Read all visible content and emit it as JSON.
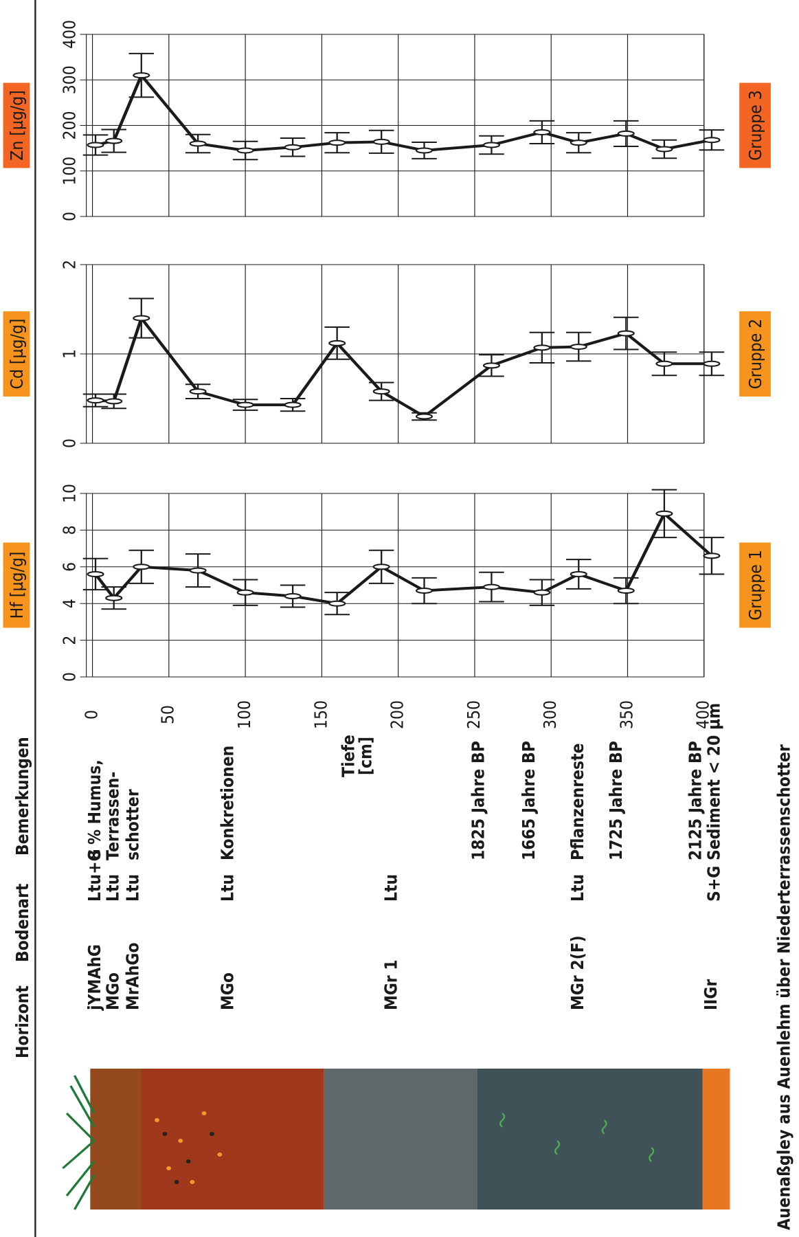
{
  "header": {
    "horizont": "Horizont",
    "bodenart": "Bodenart",
    "bemerkungen": "Bemerkungen"
  },
  "depth_axis": {
    "label": [
      "Tiefe",
      "[cm]"
    ]
  },
  "profile": {
    "horizont": [
      {
        "d": 2,
        "text": "jYMAhG"
      },
      {
        "d": 14,
        "text": "MGo"
      },
      {
        "d": 27,
        "text": "MrAhGo"
      },
      {
        "d": 89,
        "text": "MGo"
      },
      {
        "d": 196,
        "text": "MGr 1"
      },
      {
        "d": 318,
        "text": "MGr  2(F)"
      },
      {
        "d": 405,
        "text": "IIGr"
      }
    ],
    "bodenart": [
      {
        "d": 2,
        "text": "Ltu+G"
      },
      {
        "d": 14,
        "text": "Ltu"
      },
      {
        "d": 27,
        "text": "Ltu"
      },
      {
        "d": 89,
        "text": "Ltu"
      },
      {
        "d": 196,
        "text": "Ltu"
      },
      {
        "d": 318,
        "text": "Ltu"
      },
      {
        "d": 407,
        "text": "S+G"
      }
    ],
    "bemerkungen": [
      {
        "d": 2,
        "text": "8 % Humus,"
      },
      {
        "d": 14,
        "text": "Terrassen-"
      },
      {
        "d": 27,
        "text": "schotter"
      },
      {
        "d": 89,
        "text": "Konkretionen"
      },
      {
        "d": 253,
        "text": "1825 Jahre BP",
        "color": "#c8202f"
      },
      {
        "d": 286,
        "text": "1665 Jahre BP",
        "color": "#c8202f"
      },
      {
        "d": 318,
        "text": "Pflanzenreste"
      },
      {
        "d": 343,
        "text": "1725 Jahre BP",
        "color": "#c8202f"
      },
      {
        "d": 395,
        "text": "2125 Jahre BP",
        "color": "#c8202f"
      },
      {
        "d": 407,
        "text": "Sediment < 20 µm",
        "color": "#c8202f"
      }
    ]
  },
  "caption": "Auenaßgley aus Auenlehm über Niederterrassenschotter",
  "chart_data": [
    {
      "type": "line",
      "title": "Hf [µg/g]",
      "group": "Gruppe 1",
      "x": [
        2,
        14,
        32,
        69,
        100,
        131,
        160,
        189,
        217,
        261,
        294,
        318,
        349,
        374,
        405
      ],
      "xlim": [
        -4,
        400
      ],
      "xticks": [
        0,
        50,
        100,
        150,
        200,
        250,
        300,
        350,
        400
      ],
      "ylim": [
        0,
        10
      ],
      "yticks": [
        0,
        2,
        4,
        6,
        8,
        10
      ],
      "grid": true,
      "series": [
        {
          "color": "#1a1a1a",
          "values": [
            5.6,
            4.3,
            6.0,
            5.8,
            4.6,
            4.4,
            4.0,
            6.0,
            4.7,
            4.9,
            4.6,
            5.6,
            4.7,
            8.9,
            6.6
          ],
          "errors": [
            0.85,
            0.6,
            0.9,
            0.9,
            0.7,
            0.6,
            0.6,
            0.9,
            0.7,
            0.8,
            0.7,
            0.8,
            0.7,
            1.3,
            1.0
          ]
        }
      ]
    },
    {
      "type": "line",
      "title": "Cd [µg/g]",
      "group": "Gruppe 2",
      "x": [
        2,
        14,
        32,
        69,
        100,
        131,
        160,
        189,
        217,
        261,
        294,
        318,
        349,
        374,
        405
      ],
      "xlim": [
        -4,
        400
      ],
      "xticks": [
        0,
        50,
        100,
        150,
        200,
        250,
        300,
        350,
        400
      ],
      "ylim": [
        0,
        2
      ],
      "yticks": [
        0,
        1,
        2
      ],
      "grid": true,
      "series": [
        {
          "color": "#1a1a1a",
          "values": [
            0.48,
            0.47,
            1.4,
            0.58,
            0.43,
            0.43,
            1.12,
            0.58,
            0.3,
            0.87,
            1.07,
            1.08,
            1.23,
            0.89,
            0.89
          ],
          "errors": [
            0.07,
            0.08,
            0.22,
            0.08,
            0.06,
            0.07,
            0.18,
            0.1,
            0.04,
            0.12,
            0.17,
            0.16,
            0.18,
            0.13,
            0.13
          ]
        }
      ]
    },
    {
      "type": "line",
      "title": "Zn [µg/g]",
      "group": "Gruppe 3",
      "x": [
        2,
        14,
        32,
        69,
        100,
        131,
        160,
        189,
        217,
        261,
        294,
        318,
        349,
        374,
        405
      ],
      "xlim": [
        -4,
        400
      ],
      "xticks": [
        0,
        50,
        100,
        150,
        200,
        250,
        300,
        350,
        400
      ],
      "ylim": [
        0,
        400
      ],
      "yticks": [
        0,
        100,
        200,
        300,
        400
      ],
      "grid": true,
      "series": [
        {
          "color": "#1a1a1a",
          "values": [
            157,
            166,
            310,
            160,
            145,
            152,
            162,
            164,
            145,
            157,
            185,
            162,
            182,
            148,
            168
          ],
          "errors": [
            22,
            25,
            48,
            20,
            20,
            20,
            22,
            25,
            18,
            20,
            25,
            22,
            28,
            20,
            22
          ]
        }
      ]
    }
  ]
}
